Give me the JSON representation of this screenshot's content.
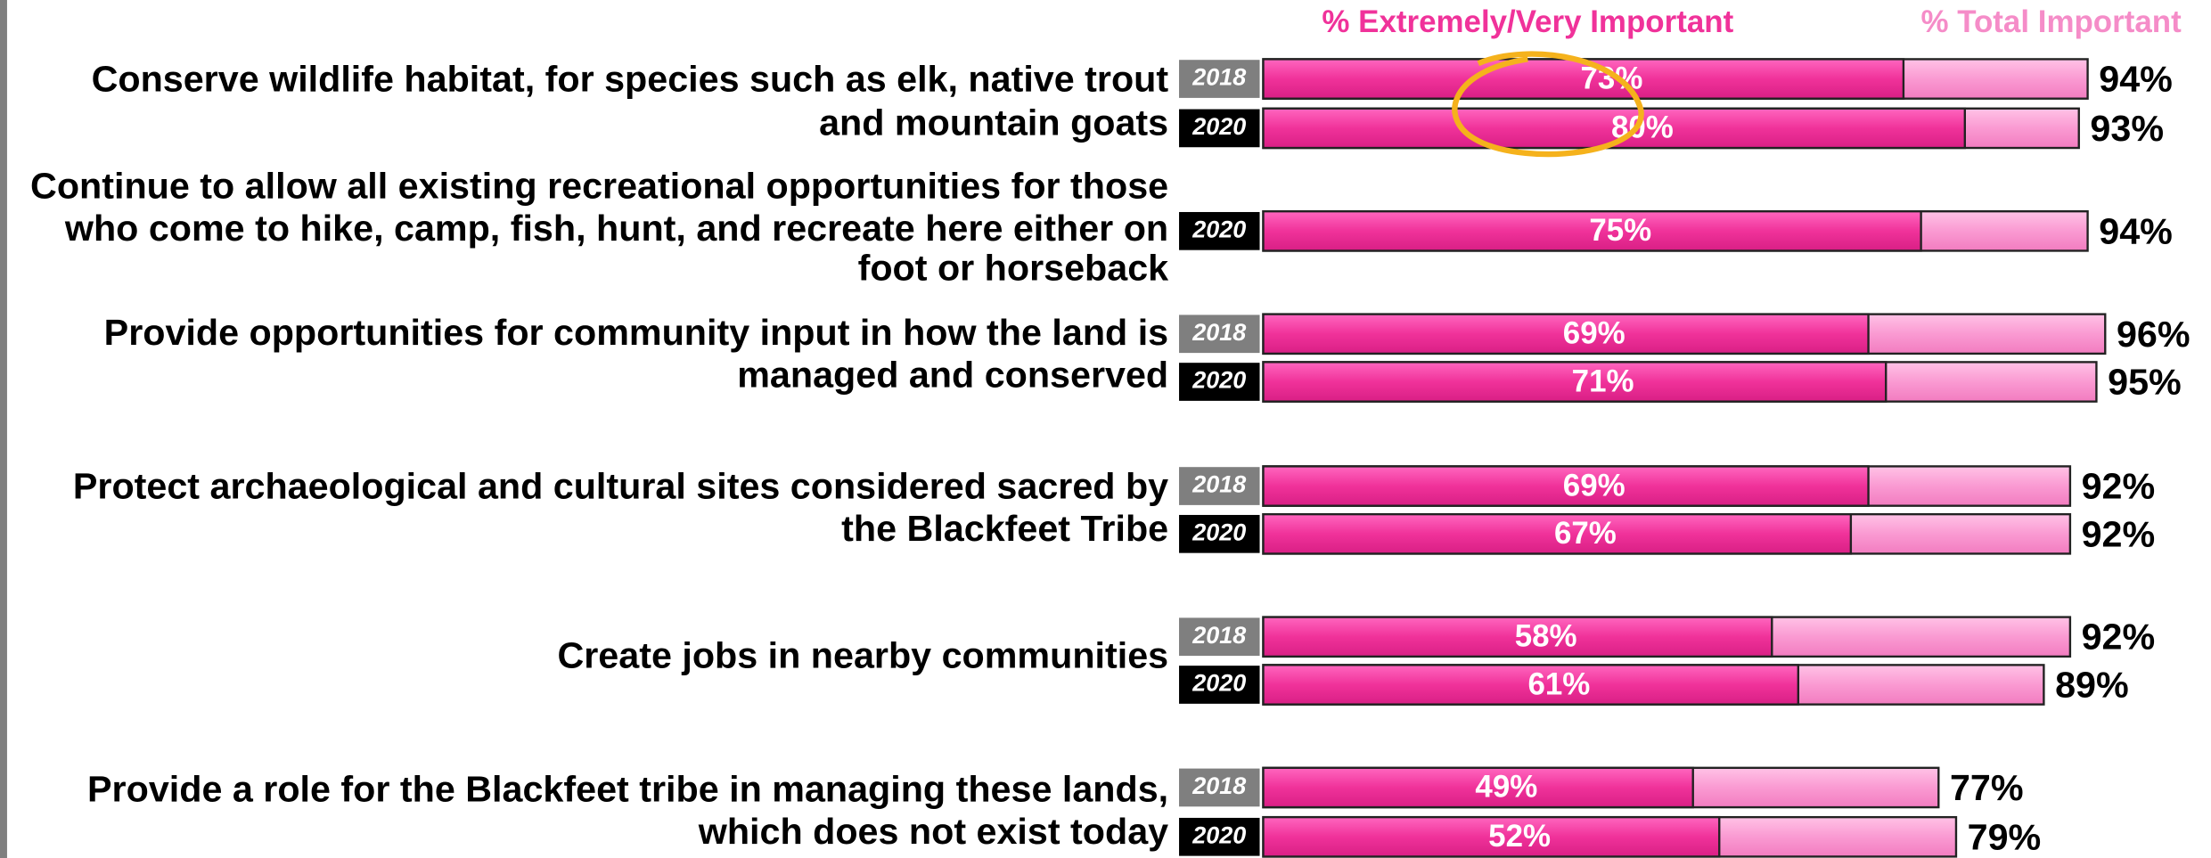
{
  "chart_data": {
    "type": "bar",
    "series": [
      {
        "name": "% Extremely/Very Important",
        "color": "#f0329a"
      },
      {
        "name": "% Total Important",
        "color": "#fa9ad2"
      }
    ],
    "groups": [
      {
        "label": [
          "Conserve wildlife habitat, for species such as elk, native trout",
          "and mountain goats"
        ],
        "years": [
          "2018",
          "2020"
        ],
        "extremely": [
          73,
          80
        ],
        "extremely_labels": [
          "73%",
          "80%"
        ],
        "total": [
          94,
          93
        ],
        "total_labels": [
          "94%",
          "93%"
        ]
      },
      {
        "label": [
          "Continue to allow all existing recreational opportunities for those",
          "who come to hike, camp, fish, hunt, and recreate here either on",
          "foot or horseback"
        ],
        "years": [
          "2020"
        ],
        "extremely": [
          75
        ],
        "extremely_labels": [
          "75%"
        ],
        "total": [
          94
        ],
        "total_labels": [
          "94%"
        ]
      },
      {
        "label": [
          "Provide opportunities for community input in how the land is",
          "managed and conserved"
        ],
        "years": [
          "2018",
          "2020"
        ],
        "extremely": [
          69,
          71
        ],
        "extremely_labels": [
          "69%",
          "71%"
        ],
        "total": [
          96,
          95
        ],
        "total_labels": [
          "96%",
          "95%"
        ]
      },
      {
        "label": [
          "Protect archaeological and cultural sites considered sacred by",
          "the Blackfeet Tribe"
        ],
        "years": [
          "2018",
          "2020"
        ],
        "extremely": [
          69,
          67
        ],
        "extremely_labels": [
          "69%",
          "67%"
        ],
        "total": [
          92,
          92
        ],
        "total_labels": [
          "92%",
          "92%"
        ]
      },
      {
        "label": [
          "Create jobs in nearby communities"
        ],
        "years": [
          "2018",
          "2020"
        ],
        "extremely": [
          58,
          61
        ],
        "extremely_labels": [
          "58%",
          "61%"
        ],
        "total": [
          92,
          89
        ],
        "total_labels": [
          "92%",
          "89%"
        ]
      },
      {
        "label": [
          "Provide a role for the Blackfeet tribe in managing these lands,",
          "which does not exist today"
        ],
        "years": [
          "2018",
          "2020"
        ],
        "extremely": [
          49,
          52
        ],
        "extremely_labels": [
          "49%",
          "52%"
        ],
        "total": [
          77,
          79
        ],
        "total_labels": [
          "77%",
          "79%"
        ]
      }
    ]
  }
}
